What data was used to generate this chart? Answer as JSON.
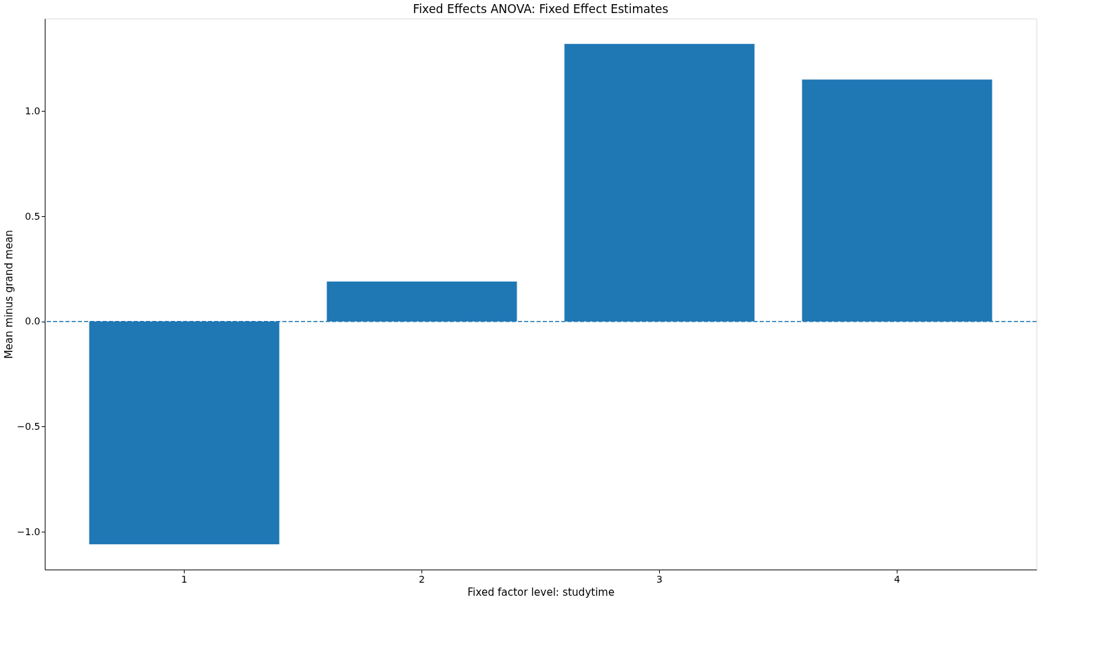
{
  "chart_data": {
    "type": "bar",
    "title": "Fixed Effects ANOVA: Fixed Effect Estimates",
    "xlabel": "Fixed factor level: studytime",
    "ylabel": "Mean minus grand mean",
    "categories": [
      "1",
      "2",
      "3",
      "4"
    ],
    "values": [
      -1.06,
      0.19,
      1.32,
      1.15
    ],
    "color": "#1f77b4",
    "ylim": [
      -1.18,
      1.44
    ],
    "yticks": [
      {
        "value": -1.0,
        "label": "−1.0"
      },
      {
        "value": -0.5,
        "label": "−0.5"
      },
      {
        "value": 0.0,
        "label": "0.0"
      },
      {
        "value": 0.5,
        "label": "0.5"
      },
      {
        "value": 1.0,
        "label": "1.0"
      }
    ],
    "ref_lines": [
      {
        "axis": "y",
        "value": 0,
        "color": "#1f77b4",
        "line_style": "dashed"
      }
    ],
    "grid": false
  }
}
